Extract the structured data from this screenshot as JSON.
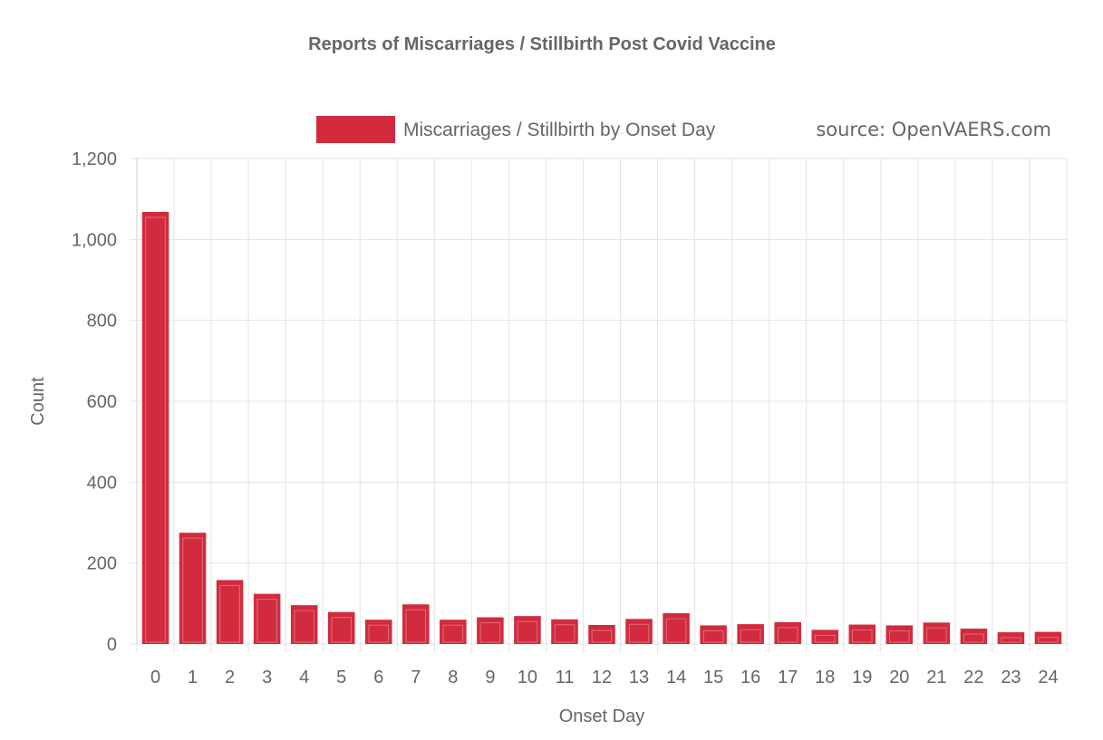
{
  "chart_data": {
    "type": "bar",
    "title": "Reports of Miscarriages / Stillbirth Post Covid Vaccine",
    "xlabel": "Onset Day",
    "ylabel": "Count",
    "categories": [
      "0",
      "1",
      "2",
      "3",
      "4",
      "5",
      "6",
      "7",
      "8",
      "9",
      "10",
      "11",
      "12",
      "13",
      "14",
      "15",
      "16",
      "17",
      "18",
      "19",
      "20",
      "21",
      "22",
      "23",
      "24"
    ],
    "series": [
      {
        "name": "Miscarriages / Stillbirth by Onset Day",
        "values": [
          1068,
          275,
          158,
          124,
          96,
          79,
          60,
          98,
          60,
          66,
          69,
          61,
          47,
          62,
          76,
          46,
          49,
          54,
          35,
          48,
          46,
          53,
          38,
          29,
          30
        ]
      }
    ],
    "ylim": [
      0,
      1200
    ],
    "yticks": [
      "0",
      "200",
      "400",
      "600",
      "800",
      "1,000",
      "1,200"
    ],
    "ytick_values": [
      0,
      200,
      400,
      600,
      800,
      1000,
      1200
    ],
    "legend_position": "top-right",
    "source_note": "source: OpenVAERS.com",
    "bar_color": "#d22b3d",
    "bar_border_color": "#e8a3ab",
    "grid": true
  }
}
